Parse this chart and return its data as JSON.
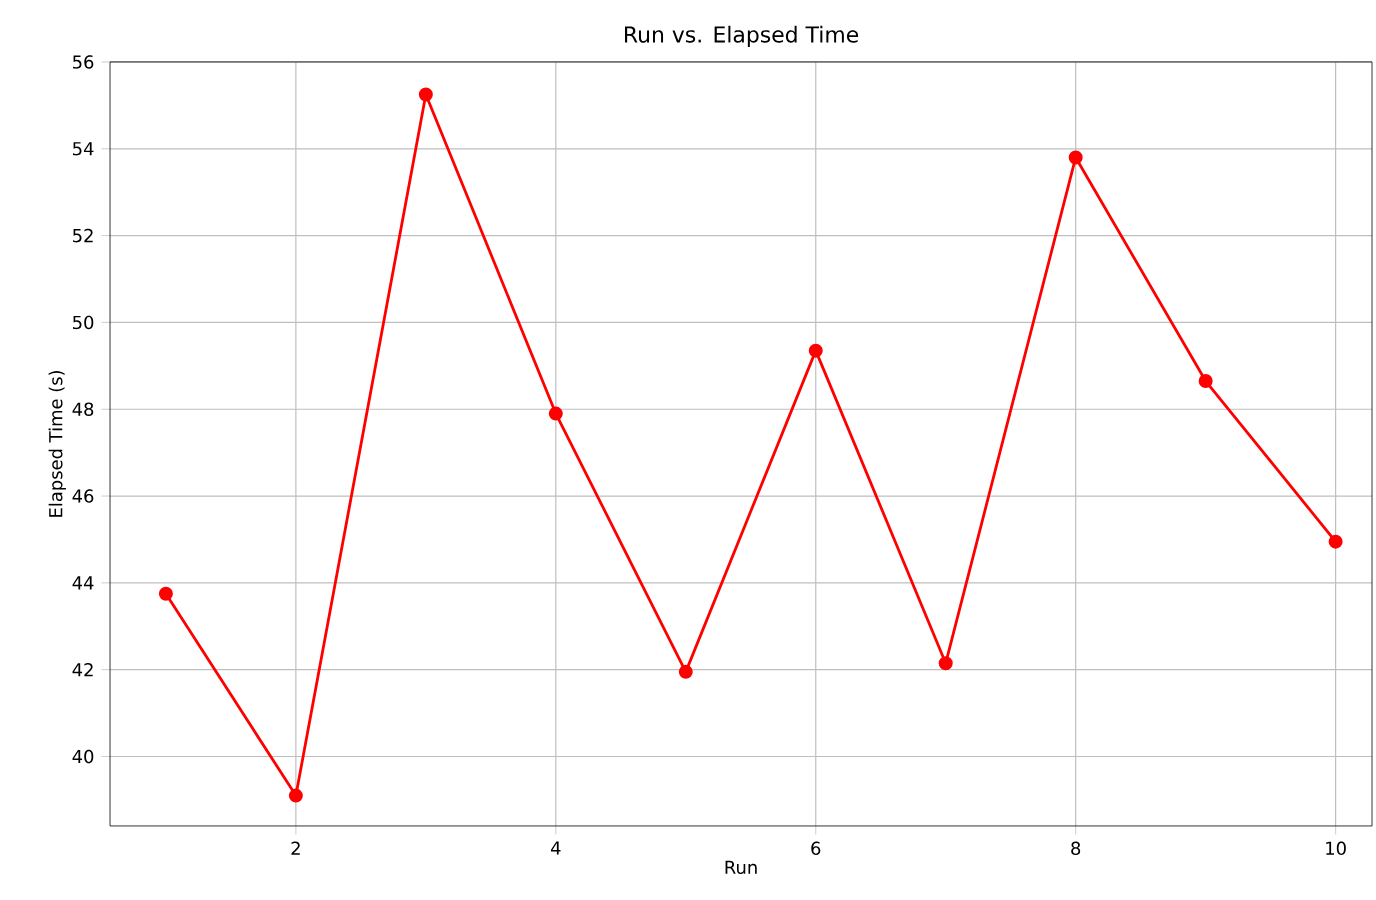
{
  "chart_data": {
    "type": "line",
    "title": "Run vs. Elapsed Time",
    "xlabel": "Run",
    "ylabel": "Elapsed Time (s)",
    "x": [
      1,
      2,
      3,
      4,
      5,
      6,
      7,
      8,
      9,
      10
    ],
    "series": [
      {
        "color": "#ff0000",
        "values": [
          43.75,
          39.1,
          55.25,
          47.9,
          41.95,
          49.35,
          42.15,
          53.8,
          48.65,
          44.95
        ]
      }
    ],
    "xlim": [
      0.57,
      10.28
    ],
    "ylim": [
      38.4,
      56
    ],
    "xticks": [
      2,
      4,
      6,
      8,
      10
    ],
    "yticks": [
      40,
      42,
      44,
      46,
      48,
      50,
      52,
      54,
      56
    ],
    "grid": true,
    "marker": "circle",
    "line_style": "solid"
  }
}
